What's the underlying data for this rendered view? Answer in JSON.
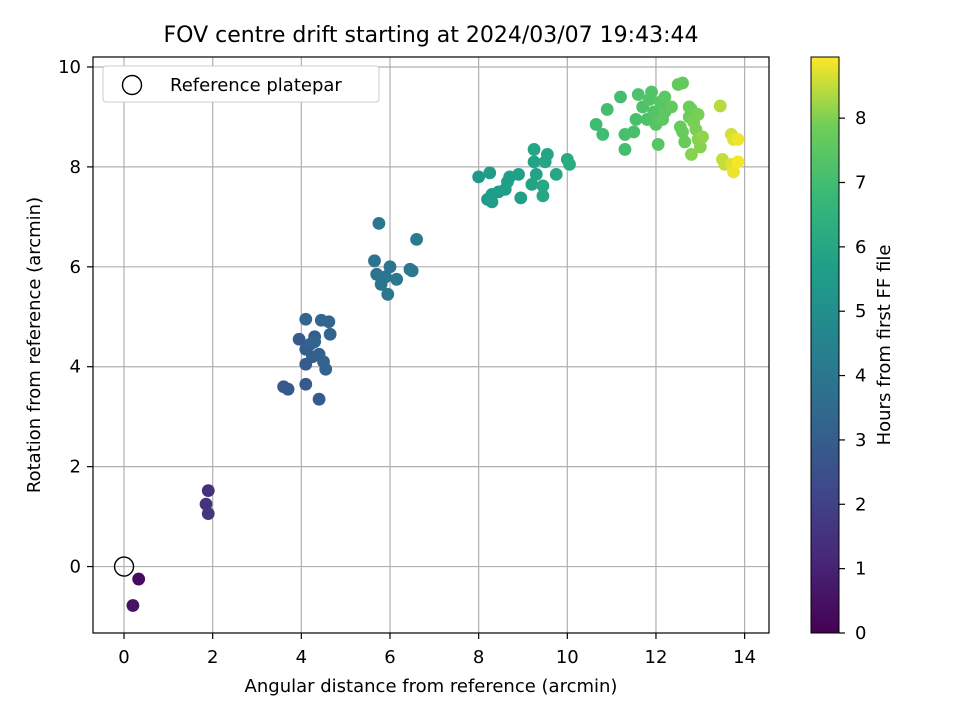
{
  "chart_data": {
    "type": "scatter",
    "title": "FOV centre drift starting at 2024/03/07 19:43:44",
    "xlabel": "Angular distance from reference (arcmin)",
    "ylabel": "Rotation from reference (arcmin)",
    "xlim": [
      -0.7,
      14.55
    ],
    "ylim": [
      -1.33,
      10.2
    ],
    "x_ticks": [
      0,
      2,
      4,
      6,
      8,
      10,
      12,
      14
    ],
    "y_ticks": [
      0,
      2,
      4,
      6,
      8,
      10
    ],
    "grid": true,
    "legend": {
      "placement": "top-left",
      "entries": [
        {
          "label": "Reference platepar",
          "marker": "hollow-circle"
        }
      ]
    },
    "reference_point": {
      "x": 0,
      "y": 0
    },
    "colorbar": {
      "label": "Hours from first FF file",
      "colormap": "viridis",
      "range": [
        0,
        8.95
      ],
      "ticks": [
        0,
        1,
        2,
        3,
        4,
        5,
        6,
        7,
        8
      ]
    },
    "points": [
      {
        "x": 0.33,
        "y": -0.25,
        "h": 0.3
      },
      {
        "x": 0.2,
        "y": -0.78,
        "h": 0.5
      },
      {
        "x": 1.9,
        "y": 1.52,
        "h": 1.4
      },
      {
        "x": 1.85,
        "y": 1.25,
        "h": 1.5
      },
      {
        "x": 1.9,
        "y": 1.06,
        "h": 1.6
      },
      {
        "x": 3.6,
        "y": 3.6,
        "h": 2.8
      },
      {
        "x": 3.7,
        "y": 3.55,
        "h": 2.8
      },
      {
        "x": 4.1,
        "y": 3.65,
        "h": 2.8
      },
      {
        "x": 4.4,
        "y": 3.35,
        "h": 2.9
      },
      {
        "x": 4.1,
        "y": 4.05,
        "h": 2.9
      },
      {
        "x": 3.95,
        "y": 4.55,
        "h": 2.9
      },
      {
        "x": 4.1,
        "y": 4.35,
        "h": 3.0
      },
      {
        "x": 4.25,
        "y": 4.2,
        "h": 3.0
      },
      {
        "x": 4.3,
        "y": 4.6,
        "h": 3.0
      },
      {
        "x": 4.2,
        "y": 4.45,
        "h": 3.1
      },
      {
        "x": 4.4,
        "y": 4.25,
        "h": 3.1
      },
      {
        "x": 4.5,
        "y": 4.1,
        "h": 3.1
      },
      {
        "x": 4.55,
        "y": 3.95,
        "h": 3.2
      },
      {
        "x": 4.3,
        "y": 4.5,
        "h": 3.2
      },
      {
        "x": 4.65,
        "y": 4.65,
        "h": 3.2
      },
      {
        "x": 4.1,
        "y": 4.95,
        "h": 3.3
      },
      {
        "x": 4.45,
        "y": 4.93,
        "h": 3.3
      },
      {
        "x": 4.62,
        "y": 4.9,
        "h": 3.3
      },
      {
        "x": 5.65,
        "y": 6.12,
        "h": 3.8
      },
      {
        "x": 5.7,
        "y": 5.85,
        "h": 3.8
      },
      {
        "x": 5.8,
        "y": 5.65,
        "h": 3.9
      },
      {
        "x": 5.9,
        "y": 5.8,
        "h": 3.9
      },
      {
        "x": 6.0,
        "y": 6.0,
        "h": 3.9
      },
      {
        "x": 5.95,
        "y": 5.45,
        "h": 4.0
      },
      {
        "x": 6.15,
        "y": 5.75,
        "h": 4.0
      },
      {
        "x": 5.75,
        "y": 6.87,
        "h": 4.0
      },
      {
        "x": 6.45,
        "y": 5.95,
        "h": 4.1
      },
      {
        "x": 6.5,
        "y": 5.92,
        "h": 4.1
      },
      {
        "x": 6.6,
        "y": 6.55,
        "h": 4.2
      },
      {
        "x": 8.0,
        "y": 7.8,
        "h": 5.4
      },
      {
        "x": 8.2,
        "y": 7.35,
        "h": 5.4
      },
      {
        "x": 8.3,
        "y": 7.45,
        "h": 5.5
      },
      {
        "x": 8.25,
        "y": 7.88,
        "h": 5.5
      },
      {
        "x": 8.45,
        "y": 7.5,
        "h": 5.5
      },
      {
        "x": 8.3,
        "y": 7.3,
        "h": 5.6
      },
      {
        "x": 8.6,
        "y": 7.55,
        "h": 5.6
      },
      {
        "x": 8.7,
        "y": 7.8,
        "h": 5.6
      },
      {
        "x": 8.65,
        "y": 7.7,
        "h": 5.7
      },
      {
        "x": 8.9,
        "y": 7.85,
        "h": 5.7
      },
      {
        "x": 8.95,
        "y": 7.38,
        "h": 5.7
      },
      {
        "x": 9.2,
        "y": 7.65,
        "h": 5.8
      },
      {
        "x": 9.3,
        "y": 7.85,
        "h": 5.8
      },
      {
        "x": 9.25,
        "y": 8.1,
        "h": 5.8
      },
      {
        "x": 9.25,
        "y": 8.35,
        "h": 5.9
      },
      {
        "x": 9.5,
        "y": 8.1,
        "h": 5.9
      },
      {
        "x": 9.55,
        "y": 8.25,
        "h": 5.9
      },
      {
        "x": 9.45,
        "y": 7.62,
        "h": 6.0
      },
      {
        "x": 9.45,
        "y": 7.42,
        "h": 6.0
      },
      {
        "x": 9.75,
        "y": 7.85,
        "h": 6.0
      },
      {
        "x": 10.0,
        "y": 8.15,
        "h": 6.1
      },
      {
        "x": 10.05,
        "y": 8.05,
        "h": 6.2
      },
      {
        "x": 10.65,
        "y": 8.85,
        "h": 6.9
      },
      {
        "x": 10.8,
        "y": 8.65,
        "h": 6.9
      },
      {
        "x": 10.9,
        "y": 9.15,
        "h": 7.0
      },
      {
        "x": 11.2,
        "y": 9.4,
        "h": 7.0
      },
      {
        "x": 11.3,
        "y": 8.35,
        "h": 7.0
      },
      {
        "x": 11.3,
        "y": 8.65,
        "h": 7.1
      },
      {
        "x": 11.5,
        "y": 8.7,
        "h": 7.1
      },
      {
        "x": 11.55,
        "y": 8.95,
        "h": 7.1
      },
      {
        "x": 11.6,
        "y": 9.45,
        "h": 7.2
      },
      {
        "x": 11.7,
        "y": 9.2,
        "h": 7.2
      },
      {
        "x": 11.8,
        "y": 8.95,
        "h": 7.2
      },
      {
        "x": 11.85,
        "y": 9.35,
        "h": 7.3
      },
      {
        "x": 11.9,
        "y": 9.5,
        "h": 7.3
      },
      {
        "x": 11.95,
        "y": 9.1,
        "h": 7.3
      },
      {
        "x": 12.0,
        "y": 8.85,
        "h": 7.4
      },
      {
        "x": 12.1,
        "y": 9.3,
        "h": 7.4
      },
      {
        "x": 12.05,
        "y": 8.45,
        "h": 7.4
      },
      {
        "x": 12.15,
        "y": 8.95,
        "h": 7.5
      },
      {
        "x": 12.2,
        "y": 9.1,
        "h": 7.5
      },
      {
        "x": 12.2,
        "y": 9.4,
        "h": 7.5
      },
      {
        "x": 12.35,
        "y": 9.2,
        "h": 7.6
      },
      {
        "x": 12.5,
        "y": 9.65,
        "h": 7.6
      },
      {
        "x": 12.6,
        "y": 9.68,
        "h": 7.6
      },
      {
        "x": 12.55,
        "y": 8.8,
        "h": 7.7
      },
      {
        "x": 12.6,
        "y": 8.7,
        "h": 7.7
      },
      {
        "x": 12.65,
        "y": 8.5,
        "h": 7.7
      },
      {
        "x": 12.75,
        "y": 9.0,
        "h": 7.8
      },
      {
        "x": 12.8,
        "y": 9.15,
        "h": 7.8
      },
      {
        "x": 12.75,
        "y": 9.2,
        "h": 7.8
      },
      {
        "x": 12.85,
        "y": 8.9,
        "h": 7.9
      },
      {
        "x": 12.9,
        "y": 8.75,
        "h": 7.9
      },
      {
        "x": 12.95,
        "y": 9.05,
        "h": 7.9
      },
      {
        "x": 12.95,
        "y": 8.55,
        "h": 8.0
      },
      {
        "x": 12.8,
        "y": 8.25,
        "h": 8.0
      },
      {
        "x": 13.0,
        "y": 8.4,
        "h": 8.0
      },
      {
        "x": 13.05,
        "y": 8.6,
        "h": 8.1
      },
      {
        "x": 13.45,
        "y": 9.22,
        "h": 8.4
      },
      {
        "x": 13.5,
        "y": 8.15,
        "h": 8.5
      },
      {
        "x": 13.55,
        "y": 8.05,
        "h": 8.5
      },
      {
        "x": 13.7,
        "y": 8.65,
        "h": 8.6
      },
      {
        "x": 13.75,
        "y": 8.55,
        "h": 8.7
      },
      {
        "x": 13.7,
        "y": 8.05,
        "h": 8.7
      },
      {
        "x": 13.75,
        "y": 7.9,
        "h": 8.8
      },
      {
        "x": 13.85,
        "y": 8.55,
        "h": 8.85
      },
      {
        "x": 13.85,
        "y": 8.1,
        "h": 8.9
      }
    ]
  }
}
